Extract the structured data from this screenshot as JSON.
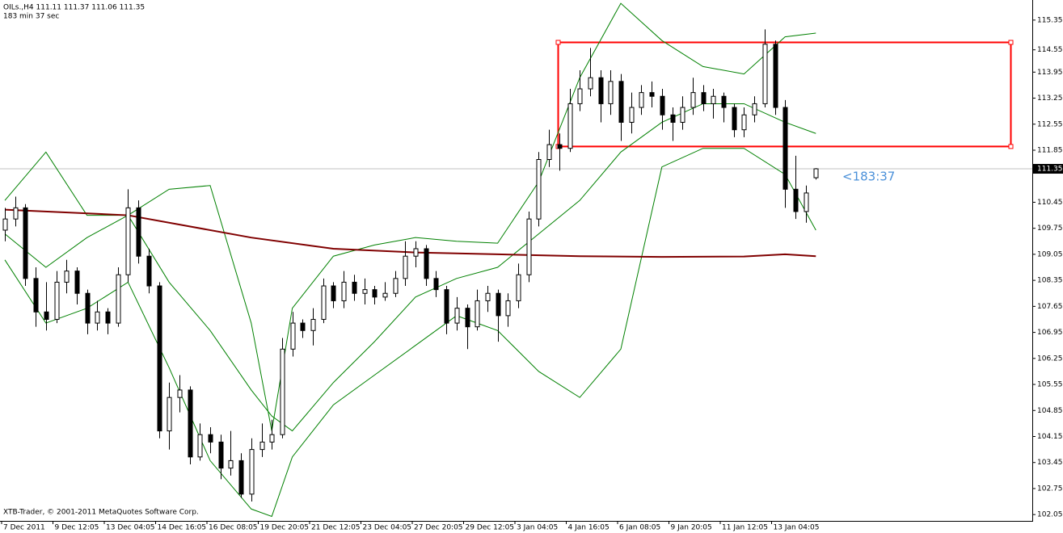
{
  "header": {
    "symbol_line": "OILs.,H4  111.11 111.37 111.06 111.35",
    "timer_line": "183 min 37 sec"
  },
  "footer": "XTB-Trader, © 2001-2011 MetaQuotes Software Corp.",
  "chart_data": {
    "type": "candlestick",
    "categories": [
      "7 Dec 2011",
      null,
      null,
      null,
      null,
      "9 Dec 12:05",
      null,
      null,
      null,
      null,
      "13 Dec 04:05",
      null,
      null,
      null,
      null,
      "14 Dec 16:05",
      null,
      null,
      null,
      null,
      "16 Dec 08:05",
      null,
      null,
      null,
      null,
      "19 Dec 20:05",
      null,
      null,
      null,
      null,
      "21 Dec 12:05",
      null,
      null,
      null,
      null,
      "23 Dec 04:05",
      null,
      null,
      null,
      null,
      "27 Dec 20:05",
      null,
      null,
      null,
      null,
      "29 Dec 12:05",
      null,
      null,
      null,
      null,
      "3 Jan 04:05",
      null,
      null,
      null,
      null,
      "4 Jan 16:05",
      null,
      null,
      null,
      null,
      "6 Jan 08:05",
      null,
      null,
      null,
      null,
      "9 Jan 20:05",
      null,
      null,
      null,
      null,
      "11 Jan 12:05",
      null,
      null,
      null,
      null,
      "13 Jan 04:05",
      null,
      null,
      null,
      null
    ],
    "ohlc": [
      [
        109.7,
        110.3,
        109.4,
        110.0
      ],
      [
        110.0,
        110.6,
        109.8,
        110.3
      ],
      [
        110.3,
        110.4,
        108.2,
        108.4
      ],
      [
        108.4,
        108.7,
        107.1,
        107.5
      ],
      [
        107.5,
        108.3,
        107.0,
        107.3
      ],
      [
        107.3,
        108.6,
        107.2,
        108.3
      ],
      [
        108.3,
        108.9,
        108.0,
        108.6
      ],
      [
        108.6,
        108.7,
        107.7,
        108.0
      ],
      [
        108.0,
        108.1,
        106.9,
        107.2
      ],
      [
        107.2,
        107.8,
        107.0,
        107.5
      ],
      [
        107.5,
        107.6,
        106.9,
        107.2
      ],
      [
        107.2,
        108.7,
        107.1,
        108.5
      ],
      [
        108.5,
        110.8,
        108.3,
        110.3
      ],
      [
        110.3,
        110.5,
        108.8,
        109.0
      ],
      [
        109.0,
        109.2,
        108.0,
        108.2
      ],
      [
        108.2,
        108.3,
        104.1,
        104.3
      ],
      [
        104.3,
        105.6,
        103.8,
        105.2
      ],
      [
        105.2,
        105.8,
        104.8,
        105.4
      ],
      [
        105.4,
        105.5,
        103.4,
        103.6
      ],
      [
        103.6,
        104.5,
        103.5,
        104.2
      ],
      [
        104.2,
        104.4,
        103.7,
        104.0
      ],
      [
        104.0,
        104.2,
        103.0,
        103.3
      ],
      [
        103.3,
        104.3,
        103.1,
        103.5
      ],
      [
        103.5,
        103.7,
        102.5,
        102.6
      ],
      [
        102.6,
        104.1,
        102.4,
        103.8
      ],
      [
        103.8,
        104.5,
        103.6,
        104.0
      ],
      [
        104.0,
        104.6,
        103.8,
        104.2
      ],
      [
        104.2,
        106.8,
        104.1,
        106.5
      ],
      [
        106.5,
        107.5,
        106.3,
        107.2
      ],
      [
        107.2,
        107.3,
        106.8,
        107.0
      ],
      [
        107.0,
        107.6,
        106.6,
        107.3
      ],
      [
        107.3,
        108.4,
        107.2,
        108.2
      ],
      [
        108.2,
        108.3,
        107.6,
        107.8
      ],
      [
        107.8,
        108.6,
        107.6,
        108.3
      ],
      [
        108.3,
        108.5,
        107.8,
        108.0
      ],
      [
        108.0,
        108.4,
        107.7,
        108.1
      ],
      [
        108.1,
        108.2,
        107.7,
        107.9
      ],
      [
        107.9,
        108.3,
        107.8,
        108.0
      ],
      [
        108.0,
        108.6,
        107.9,
        108.4
      ],
      [
        108.4,
        109.4,
        108.2,
        109.0
      ],
      [
        109.0,
        109.4,
        108.7,
        109.2
      ],
      [
        109.2,
        109.3,
        108.2,
        108.4
      ],
      [
        108.4,
        108.6,
        107.9,
        108.1
      ],
      [
        108.1,
        108.2,
        106.9,
        107.2
      ],
      [
        107.2,
        107.9,
        107.0,
        107.6
      ],
      [
        107.6,
        107.7,
        106.5,
        107.1
      ],
      [
        107.1,
        108.1,
        107.0,
        107.8
      ],
      [
        107.8,
        108.2,
        107.5,
        108.0
      ],
      [
        108.0,
        108.1,
        106.7,
        107.4
      ],
      [
        107.4,
        108.0,
        107.1,
        107.8
      ],
      [
        107.8,
        108.8,
        107.6,
        108.5
      ],
      [
        108.5,
        110.2,
        108.3,
        110.0
      ],
      [
        110.0,
        111.8,
        109.8,
        111.6
      ],
      [
        111.6,
        112.4,
        111.4,
        112.0
      ],
      [
        112.0,
        112.3,
        111.3,
        111.9
      ],
      [
        111.9,
        113.5,
        111.8,
        113.1
      ],
      [
        113.1,
        114.0,
        112.9,
        113.5
      ],
      [
        113.5,
        114.6,
        113.3,
        113.8
      ],
      [
        113.8,
        114.0,
        112.6,
        113.1
      ],
      [
        113.1,
        114.0,
        112.8,
        113.7
      ],
      [
        113.7,
        113.9,
        112.1,
        112.6
      ],
      [
        112.6,
        113.4,
        112.3,
        113.0
      ],
      [
        113.0,
        113.6,
        112.8,
        113.4
      ],
      [
        113.4,
        113.7,
        113.0,
        113.3
      ],
      [
        113.3,
        113.5,
        112.4,
        112.8
      ],
      [
        112.8,
        113.0,
        112.1,
        112.6
      ],
      [
        112.6,
        113.3,
        112.4,
        113.0
      ],
      [
        113.0,
        113.8,
        112.8,
        113.4
      ],
      [
        113.4,
        113.6,
        112.9,
        113.1
      ],
      [
        113.1,
        113.5,
        112.7,
        113.3
      ],
      [
        113.3,
        113.4,
        112.6,
        113.0
      ],
      [
        113.0,
        113.1,
        112.2,
        112.4
      ],
      [
        112.4,
        113.0,
        112.2,
        112.8
      ],
      [
        112.8,
        113.3,
        112.6,
        113.1
      ],
      [
        113.1,
        115.1,
        113.0,
        114.7
      ],
      [
        114.7,
        114.8,
        112.8,
        113.0
      ],
      [
        113.0,
        113.2,
        110.3,
        110.8
      ],
      [
        110.8,
        111.7,
        110.0,
        110.2
      ],
      [
        110.2,
        110.9,
        109.9,
        110.7
      ],
      [
        111.11,
        111.37,
        111.06,
        111.35
      ]
    ],
    "lines": [
      {
        "color": "#008000",
        "x": [
          0,
          4,
          8,
          12,
          16,
          20,
          24,
          26,
          28,
          32,
          36,
          40,
          44,
          48,
          52,
          56,
          60,
          64,
          68,
          72,
          76,
          79
        ],
        "values": [
          110.5,
          111.8,
          110.1,
          110.1,
          110.8,
          110.9,
          107.2,
          104.3,
          107.6,
          109.0,
          109.3,
          109.5,
          109.4,
          109.35,
          111.0,
          113.8,
          115.8,
          114.8,
          114.1,
          113.9,
          114.9,
          115.0
        ]
      },
      {
        "color": "#008000",
        "x": [
          0,
          4,
          8,
          12,
          16,
          20,
          24,
          26,
          28,
          32,
          36,
          40,
          44,
          48,
          52,
          56,
          60,
          64,
          68,
          72,
          76,
          79
        ],
        "values": [
          109.6,
          108.7,
          109.5,
          110.1,
          108.3,
          107.0,
          105.4,
          104.7,
          104.3,
          105.6,
          106.7,
          107.9,
          108.4,
          108.7,
          109.6,
          110.5,
          111.8,
          112.6,
          113.1,
          113.1,
          112.6,
          112.3
        ]
      },
      {
        "color": "#008000",
        "x": [
          0,
          4,
          8,
          12,
          16,
          20,
          24,
          26,
          28,
          32,
          36,
          40,
          44,
          48,
          52,
          56,
          60,
          64,
          68,
          72,
          76,
          79
        ],
        "values": [
          108.9,
          107.2,
          107.6,
          108.3,
          106.0,
          103.5,
          102.2,
          102.0,
          103.6,
          105.0,
          105.8,
          106.6,
          107.4,
          107.0,
          105.9,
          105.2,
          106.5,
          111.4,
          111.9,
          111.9,
          111.2,
          109.7
        ]
      },
      {
        "color": "#800000",
        "x": [
          0,
          12,
          24,
          32,
          40,
          48,
          56,
          64,
          72,
          76,
          79
        ],
        "values": [
          110.25,
          110.1,
          109.5,
          109.2,
          109.1,
          109.05,
          109.0,
          108.98,
          108.99,
          109.05,
          109.0
        ]
      }
    ],
    "box": {
      "color": "#ff0000",
      "bottom": 111.95,
      "top": 114.75
    },
    "last_price": 111.35,
    "timer": "<183:37",
    "ylim": [
      101.88,
      115.89
    ],
    "yticks": [
      115.35,
      114.55,
      113.95,
      113.25,
      112.55,
      111.85,
      110.45,
      109.75,
      109.05,
      108.35,
      107.65,
      106.95,
      106.25,
      105.55,
      104.85,
      104.15,
      103.45,
      102.75,
      102.05
    ]
  }
}
